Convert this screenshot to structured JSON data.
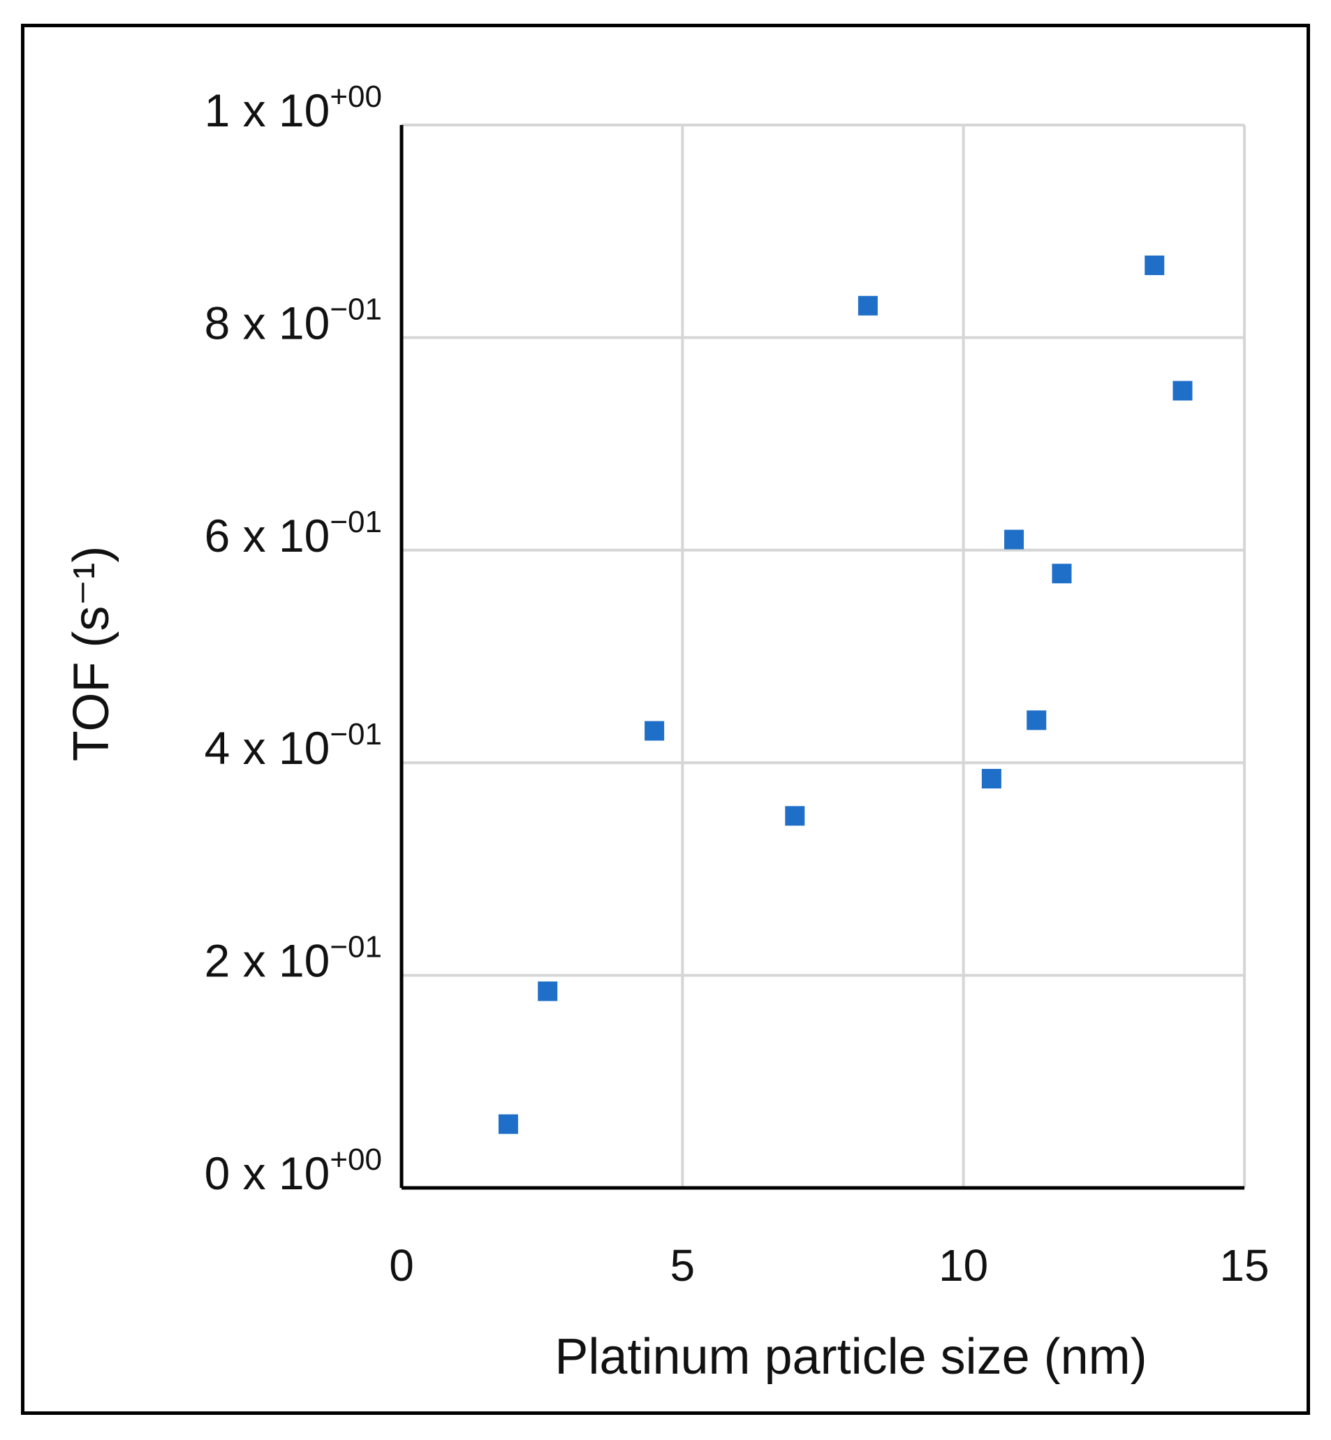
{
  "chart_data": {
    "type": "scatter",
    "xlabel": "Platinum particle size (nm)",
    "ylabel": "TOF (s⁻¹)",
    "xlim": [
      0,
      15
    ],
    "ylim": [
      0,
      1
    ],
    "x_ticks": [
      0,
      5,
      10,
      15
    ],
    "y_ticks": [
      0,
      0.2,
      0.4,
      0.6,
      0.8,
      1.0
    ],
    "x_tick_labels": [
      "0",
      "5",
      "10",
      "15"
    ],
    "y_tick_labels": [
      {
        "mantissa": "0 x 10",
        "exponent": "+00"
      },
      {
        "mantissa": "2 x 10",
        "exponent": "−01"
      },
      {
        "mantissa": "4 x 10",
        "exponent": "−01"
      },
      {
        "mantissa": "6 x 10",
        "exponent": "−01"
      },
      {
        "mantissa": "8 x 10",
        "exponent": "−01"
      },
      {
        "mantissa": "1 x 10",
        "exponent": "+00"
      }
    ],
    "grid": true,
    "marker": "square",
    "marker_color": "#1f6fc8",
    "points": [
      {
        "x": 1.9,
        "y": 0.06
      },
      {
        "x": 2.6,
        "y": 0.185
      },
      {
        "x": 4.5,
        "y": 0.43
      },
      {
        "x": 7.0,
        "y": 0.35
      },
      {
        "x": 8.3,
        "y": 0.83
      },
      {
        "x": 10.5,
        "y": 0.385
      },
      {
        "x": 10.9,
        "y": 0.61
      },
      {
        "x": 11.3,
        "y": 0.44
      },
      {
        "x": 11.75,
        "y": 0.578
      },
      {
        "x": 13.4,
        "y": 0.868
      },
      {
        "x": 13.9,
        "y": 0.75
      }
    ]
  }
}
